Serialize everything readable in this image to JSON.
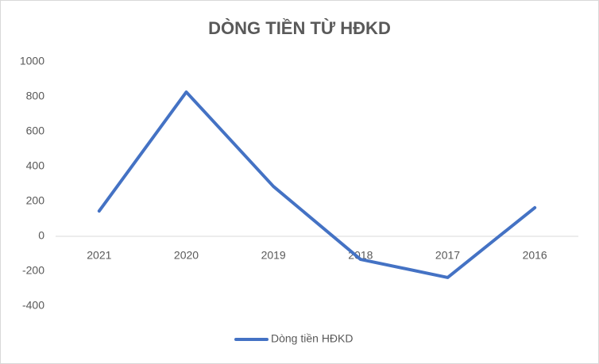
{
  "chart_data": {
    "type": "line",
    "title": "DÒNG TIỀN TỪ HĐKD",
    "categories": [
      "2021",
      "2020",
      "2019",
      "2018",
      "2017",
      "2016"
    ],
    "series": [
      {
        "name": "Dòng tiền HĐKD",
        "color": "#4472c4",
        "values": [
          145,
          827,
          286,
          -132,
          -236,
          164
        ]
      }
    ],
    "ylim": [
      -400,
      1000
    ],
    "yticks": [
      -400,
      -200,
      0,
      200,
      400,
      600,
      800,
      1000
    ],
    "grid": false,
    "legend": "bottom"
  }
}
